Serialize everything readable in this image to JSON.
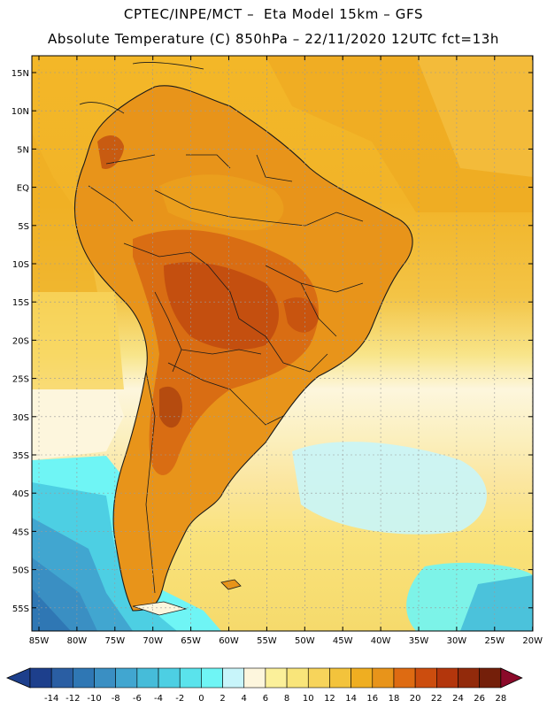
{
  "header": {
    "line1": "CPTEC/INPE/MCT –  Eta Model 15km – GFS",
    "line2": "Absolute Temperature (C) 850hPa – 22/11/2020 12UTC fct=13h"
  },
  "map": {
    "region": "South America",
    "variable": "Absolute Temperature (C)",
    "level": "850hPa",
    "lat_labels": [
      "15N",
      "10N",
      "5N",
      "EQ",
      "5S",
      "10S",
      "15S",
      "20S",
      "25S",
      "30S",
      "35S",
      "40S",
      "45S",
      "50S",
      "55S"
    ],
    "lon_labels": [
      "85W",
      "80W",
      "75W",
      "70W",
      "65W",
      "60W",
      "55W",
      "50W",
      "45W",
      "40W",
      "35W",
      "30W",
      "25W",
      "20W"
    ]
  },
  "colorbar": {
    "labels": [
      "-14",
      "-12",
      "-10",
      "-8",
      "-6",
      "-4",
      "-2",
      "0",
      "2",
      "4",
      "6",
      "8",
      "10",
      "12",
      "14",
      "16",
      "18",
      "20",
      "22",
      "24",
      "26",
      "28"
    ],
    "colors": [
      "#1d3f8c",
      "#2a5ea3",
      "#2f77b4",
      "#3a8fc3",
      "#41a6d0",
      "#46bcd9",
      "#4dcfe3",
      "#5ae3ec",
      "#6ff5f5",
      "#c8f5fa",
      "#fdf6dd",
      "#fbf09a",
      "#f9e57a",
      "#f7d45b",
      "#f3c33c",
      "#efae21",
      "#e8941a",
      "#de6b12",
      "#cc4d0e",
      "#b3360c",
      "#922a0b",
      "#741f0a",
      "#8b0a2a"
    ]
  }
}
